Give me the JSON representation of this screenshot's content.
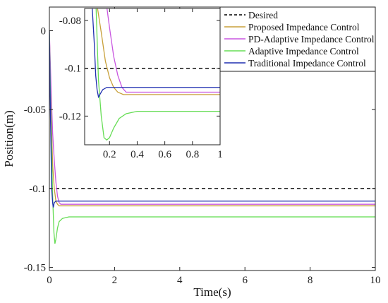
{
  "chart_data": [
    {
      "type": "line",
      "xlabel": "Time(s)",
      "ylabel": "Position(m)",
      "xlim": [
        0,
        10
      ],
      "ylim": [
        -0.152,
        0.015
      ],
      "xticks": [
        0,
        2,
        4,
        6,
        8,
        10
      ],
      "yticks": [
        0,
        -0.05,
        -0.1,
        -0.15
      ],
      "xtick_labels": [
        "0",
        "2",
        "4",
        "6",
        "8",
        "10"
      ],
      "ytick_labels": [
        "0",
        "-0.05",
        "-0.1",
        "-0.15"
      ],
      "grid": false,
      "legend": "top-right",
      "series": [
        {
          "name": "Desired",
          "color": "#000000",
          "dash": "dashed",
          "x": [
            0,
            10
          ],
          "y": [
            -0.1,
            -0.1
          ]
        },
        {
          "name": "Proposed Impedance Control",
          "color": "#c8a03a",
          "dash": "solid",
          "x": [
            0,
            0.05,
            0.1,
            0.15,
            0.2,
            0.25,
            0.3,
            0.4,
            0.6,
            1,
            10
          ],
          "y": [
            0,
            -0.05,
            -0.085,
            -0.1,
            -0.108,
            -0.11,
            -0.111,
            -0.111,
            -0.111,
            -0.111,
            -0.111
          ]
        },
        {
          "name": "PD-Adaptive Impedance Control",
          "color": "#c957e0",
          "dash": "solid",
          "x": [
            0,
            0.05,
            0.1,
            0.15,
            0.2,
            0.25,
            0.3,
            0.35,
            0.4,
            0.6,
            1,
            10
          ],
          "y": [
            0,
            -0.035,
            -0.065,
            -0.082,
            -0.096,
            -0.105,
            -0.109,
            -0.11,
            -0.11,
            -0.11,
            -0.11,
            -0.11
          ]
        },
        {
          "name": "Adaptive Impedance Control",
          "color": "#66dd55",
          "dash": "solid",
          "x": [
            0,
            0.05,
            0.1,
            0.14,
            0.17,
            0.2,
            0.25,
            0.3,
            0.4,
            0.6,
            1,
            10
          ],
          "y": [
            0,
            -0.06,
            -0.105,
            -0.128,
            -0.135,
            -0.132,
            -0.125,
            -0.121,
            -0.119,
            -0.118,
            -0.118,
            -0.118
          ]
        },
        {
          "name": "Traditional Impedance Control",
          "color": "#1f2fb0",
          "dash": "solid",
          "x": [
            0,
            0.03,
            0.07,
            0.1,
            0.12,
            0.15,
            0.2,
            0.3,
            0.6,
            1,
            10
          ],
          "y": [
            0,
            -0.05,
            -0.1,
            -0.109,
            -0.112,
            -0.109,
            -0.108,
            -0.108,
            -0.108,
            -0.108,
            -0.108
          ]
        }
      ]
    },
    {
      "type": "line",
      "xlabel": "",
      "ylabel": "",
      "xlim": [
        0.02,
        1
      ],
      "ylim": [
        -0.132,
        -0.075
      ],
      "xticks": [
        0.2,
        0.4,
        0.6,
        0.8,
        1
      ],
      "yticks": [
        -0.08,
        -0.1,
        -0.12
      ],
      "xtick_labels": [
        "0.2",
        "0.4",
        "0.6",
        "0.8",
        "1"
      ],
      "ytick_labels": [
        "-0.08",
        "-0.1",
        "-0.12"
      ],
      "grid": false,
      "series": [
        {
          "name": "Desired",
          "color": "#000000",
          "dash": "dashed",
          "x": [
            0.02,
            1
          ],
          "y": [
            -0.1,
            -0.1
          ]
        },
        {
          "name": "Proposed Impedance Control",
          "color": "#c8a03a",
          "dash": "solid",
          "x": [
            0.02,
            0.1,
            0.14,
            0.17,
            0.2,
            0.23,
            0.26,
            0.3,
            0.4,
            0.6,
            1
          ],
          "y": [
            -0.07,
            -0.07,
            -0.085,
            -0.097,
            -0.104,
            -0.108,
            -0.11,
            -0.111,
            -0.111,
            -0.111,
            -0.111
          ]
        },
        {
          "name": "PD-Adaptive Impedance Control",
          "color": "#c957e0",
          "dash": "solid",
          "x": [
            0.02,
            0.17,
            0.2,
            0.23,
            0.26,
            0.29,
            0.32,
            0.36,
            0.4,
            0.6,
            1
          ],
          "y": [
            -0.07,
            -0.07,
            -0.083,
            -0.095,
            -0.103,
            -0.108,
            -0.11,
            -0.11,
            -0.11,
            -0.11,
            -0.11
          ]
        },
        {
          "name": "Adaptive Impedance Control",
          "color": "#66dd55",
          "dash": "solid",
          "x": [
            0.02,
            0.1,
            0.12,
            0.14,
            0.16,
            0.18,
            0.2,
            0.23,
            0.27,
            0.32,
            0.4,
            0.6,
            1
          ],
          "y": [
            -0.07,
            -0.07,
            -0.105,
            -0.12,
            -0.129,
            -0.13,
            -0.129,
            -0.125,
            -0.121,
            -0.119,
            -0.118,
            -0.118,
            -0.118
          ]
        },
        {
          "name": "Traditional Impedance Control",
          "color": "#1f2fb0",
          "dash": "solid",
          "x": [
            0.02,
            0.07,
            0.09,
            0.1,
            0.11,
            0.12,
            0.13,
            0.15,
            0.18,
            0.25,
            0.4,
            0.6,
            1
          ],
          "y": [
            -0.07,
            -0.07,
            -0.09,
            -0.103,
            -0.109,
            -0.112,
            -0.111,
            -0.109,
            -0.108,
            -0.108,
            -0.108,
            -0.108,
            -0.108
          ]
        }
      ]
    }
  ]
}
